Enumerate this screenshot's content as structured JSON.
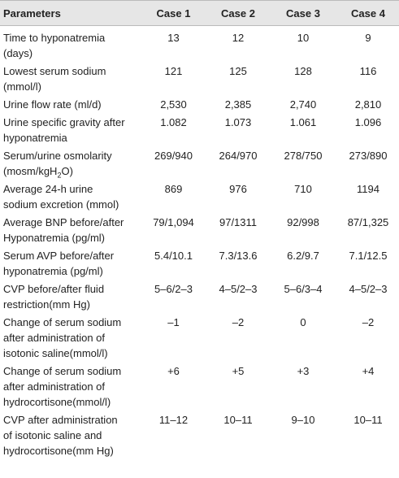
{
  "table": {
    "header": [
      "Parameters",
      "Case 1",
      "Case 2",
      "Case 3",
      "Case 4"
    ],
    "rows": [
      {
        "parameter": [
          "Time to hyponatremia",
          "(days)"
        ],
        "values": [
          "13",
          "12",
          "10",
          "9"
        ]
      },
      {
        "parameter": [
          "Lowest serum sodium",
          "(mmol/l)"
        ],
        "values": [
          "121",
          "125",
          "128",
          "116"
        ]
      },
      {
        "parameter": [
          "Urine flow rate (ml/d)"
        ],
        "values": [
          "2,530",
          "2,385",
          "2,740",
          "2,810"
        ]
      },
      {
        "parameter": [
          "Urine specific gravity after",
          "hyponatremia"
        ],
        "values": [
          "1.082",
          "1.073",
          "1.061",
          "1.096"
        ]
      },
      {
        "parameter": [
          "Serum/urine osmolarity",
          [
            "(mosm/kgH",
            "2",
            "O)"
          ]
        ],
        "values": [
          "269/940",
          "264/970",
          "278/750",
          "273/890"
        ]
      },
      {
        "parameter": [
          "Average 24-h urine",
          "sodium excretion (mmol)"
        ],
        "values": [
          "869",
          "976",
          "710",
          "1194"
        ]
      },
      {
        "parameter": [
          "Average BNP before/after",
          "Hyponatremia (pg/ml)"
        ],
        "values": [
          "79/1,094",
          "97/1311",
          "92/998",
          "87/1,325"
        ]
      },
      {
        "parameter": [
          "Serum AVP before/after",
          "hyponatremia (pg/ml)"
        ],
        "values": [
          "5.4/10.1",
          "7.3/13.6",
          "6.2/9.7",
          "7.1/12.5"
        ]
      },
      {
        "parameter": [
          "CVP before/after fluid",
          "restriction(mm Hg)"
        ],
        "values": [
          "5–6/2–3",
          "4–5/2–3",
          "5–6/3–4",
          "4–5/2–3"
        ]
      },
      {
        "parameter": [
          "Change of serum sodium",
          "after administration of",
          "isotonic saline(mmol/l)"
        ],
        "values": [
          "–1",
          "–2",
          "0",
          "–2"
        ]
      },
      {
        "parameter": [
          "Change of serum sodium",
          "after administration of",
          "hydrocortisone(mmol/l)"
        ],
        "values": [
          "+6",
          "+5",
          "+3",
          "+4"
        ]
      },
      {
        "parameter": [
          "CVP after administration",
          "of isotonic saline and",
          "hydrocortisone(mm Hg)"
        ],
        "values": [
          "11–12",
          "10–11",
          "9–10",
          "10–11"
        ]
      }
    ]
  }
}
